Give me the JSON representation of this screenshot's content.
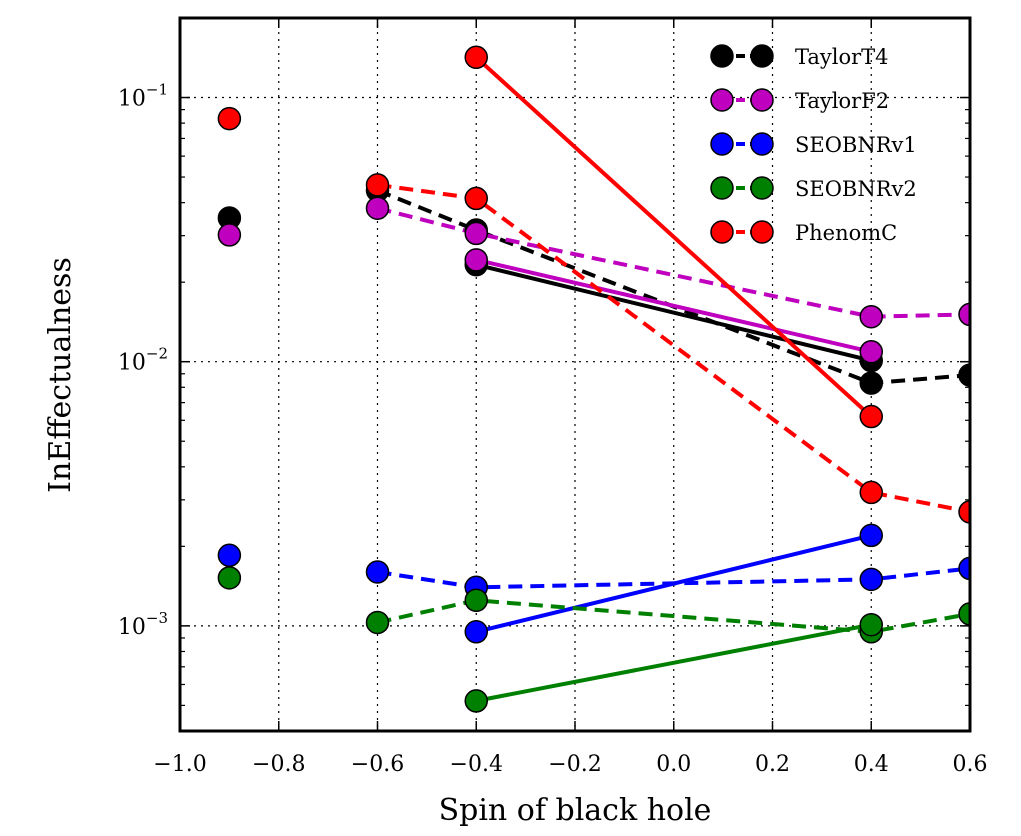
{
  "chart_data": {
    "type": "line",
    "xlabel": "Spin of black hole",
    "ylabel": "InEffectualness",
    "xlim": [
      -1.0,
      0.6
    ],
    "ylim": [
      0.0004,
      0.2
    ],
    "yscale": "log",
    "grid": true,
    "legend_position": "top-right",
    "x_ticks": [
      "−1.0",
      "−0.8",
      "−0.6",
      "−0.4",
      "−0.2",
      "0.0",
      "0.2",
      "0.4",
      "0.6"
    ],
    "x_tick_values": [
      -1.0,
      -0.8,
      -0.6,
      -0.4,
      -0.2,
      0.0,
      0.2,
      0.4,
      0.6
    ],
    "y_ticks": [
      {
        "base": "10",
        "exp": "−1",
        "value": 0.1
      },
      {
        "base": "10",
        "exp": "−2",
        "value": 0.01
      },
      {
        "base": "10",
        "exp": "−3",
        "value": 0.001
      }
    ],
    "series": [
      {
        "name": "TaylorT4",
        "color": "#000000",
        "isolated": [
          [
            -0.9,
            0.035
          ]
        ],
        "solid": [
          [
            -0.4,
            0.0233
          ],
          [
            0.4,
            0.0101
          ]
        ],
        "dashed": [
          [
            -0.6,
            0.0445
          ],
          [
            -0.4,
            0.0315
          ],
          [
            0.4,
            0.0083
          ],
          [
            0.6,
            0.0089
          ]
        ]
      },
      {
        "name": "TaylorF2",
        "color": "#bf00bf",
        "isolated": [
          [
            -0.9,
            0.0302
          ]
        ],
        "solid": [
          [
            -0.4,
            0.0243
          ],
          [
            0.4,
            0.0109
          ]
        ],
        "dashed": [
          [
            -0.6,
            0.0381
          ],
          [
            -0.4,
            0.0306
          ],
          [
            0.4,
            0.0148
          ],
          [
            0.6,
            0.0151
          ]
        ]
      },
      {
        "name": "SEOBNRv1",
        "color": "#0000ff",
        "isolated": [
          [
            -0.9,
            0.00185
          ]
        ],
        "solid": [
          [
            -0.4,
            0.00095
          ],
          [
            0.4,
            0.0022
          ]
        ],
        "dashed": [
          [
            -0.6,
            0.0016
          ],
          [
            -0.4,
            0.0014
          ],
          [
            0.4,
            0.0015
          ],
          [
            0.6,
            0.00165
          ]
        ]
      },
      {
        "name": "SEOBNRv2",
        "color": "#008000",
        "isolated": [
          [
            -0.9,
            0.00152
          ]
        ],
        "solid": [
          [
            -0.4,
            0.00052
          ],
          [
            0.4,
            0.00101
          ]
        ],
        "dashed": [
          [
            -0.6,
            0.00103
          ],
          [
            -0.4,
            0.00125
          ],
          [
            0.4,
            0.00095
          ],
          [
            0.6,
            0.00111
          ]
        ]
      },
      {
        "name": "PhenomC",
        "color": "#ff0000",
        "isolated": [
          [
            -0.9,
            0.0832
          ]
        ],
        "solid": [
          [
            -0.4,
            0.142
          ],
          [
            0.4,
            0.0062
          ]
        ],
        "dashed": [
          [
            -0.6,
            0.0467
          ],
          [
            -0.4,
            0.0415
          ],
          [
            0.4,
            0.0032
          ],
          [
            0.6,
            0.0027
          ]
        ]
      }
    ]
  }
}
